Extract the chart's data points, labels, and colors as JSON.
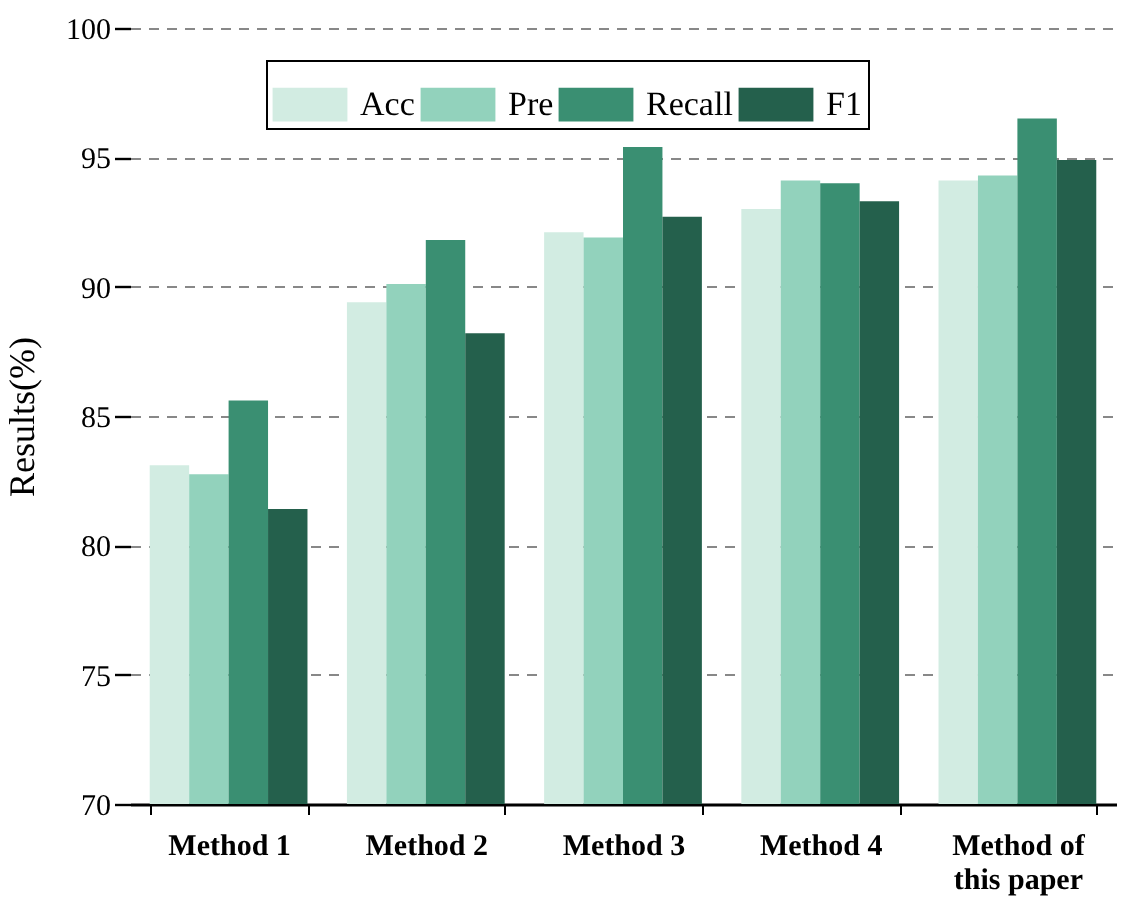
{
  "chart_data": {
    "type": "bar",
    "ylabel": "Results(%)",
    "categories": [
      "Method 1",
      "Method 2",
      "Method 3",
      "Method 4",
      "Method of this paper"
    ],
    "series": [
      {
        "name": "Acc",
        "color": "#d2ece2",
        "values": [
          83.1,
          89.4,
          92.1,
          93.0,
          94.1
        ]
      },
      {
        "name": "Pre",
        "color": "#92d2bc",
        "values": [
          82.75,
          90.1,
          91.9,
          94.1,
          94.3
        ]
      },
      {
        "name": "Recall",
        "color": "#3a8f72",
        "values": [
          85.6,
          91.8,
          95.4,
          94.0,
          96.5
        ]
      },
      {
        "name": "F1",
        "color": "#24604c",
        "values": [
          81.4,
          88.2,
          92.7,
          93.3,
          94.9
        ]
      }
    ],
    "ylim": [
      70,
      100
    ],
    "yticks": [
      70,
      75,
      80,
      85,
      90,
      95,
      100
    ],
    "grid": "y",
    "legend": "top"
  }
}
